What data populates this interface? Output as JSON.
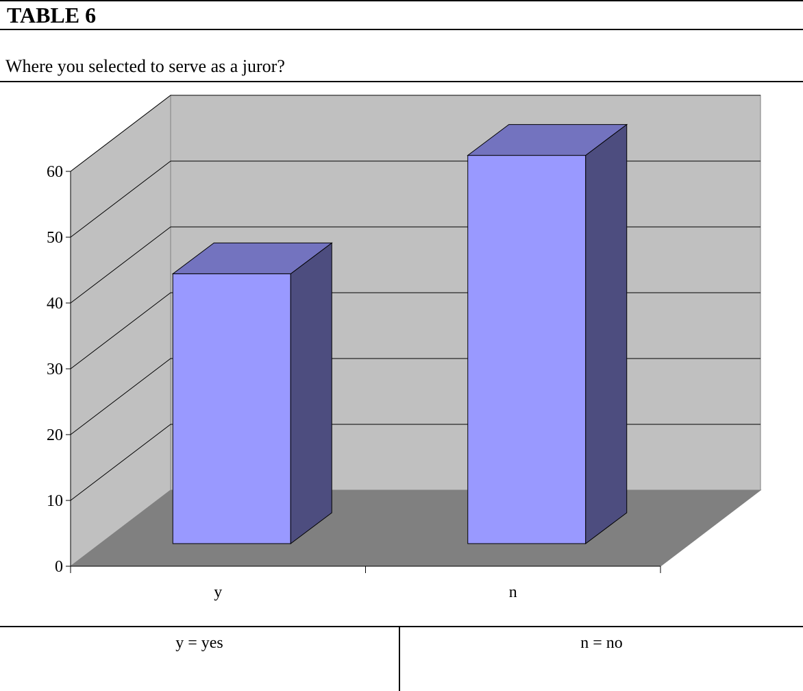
{
  "heading": "TABLE 6",
  "question": "Where you selected to serve as a juror?",
  "chart_data": {
    "type": "bar",
    "style": "3d",
    "categories": [
      "y",
      "n"
    ],
    "values": [
      41,
      59
    ],
    "ylim": [
      0,
      60
    ],
    "yticks": [
      0,
      10,
      20,
      30,
      40,
      50,
      60
    ],
    "grid": true,
    "legend": "none",
    "colors": {
      "bar_front": "#9999ff",
      "bar_top": "#7373bf",
      "bar_side": "#4d4d7f",
      "back_wall": "#c0c0c0",
      "side_wall": "#c0c0c0",
      "floor": "#808080"
    }
  },
  "legend_table": [
    "y = yes",
    "n = no"
  ]
}
